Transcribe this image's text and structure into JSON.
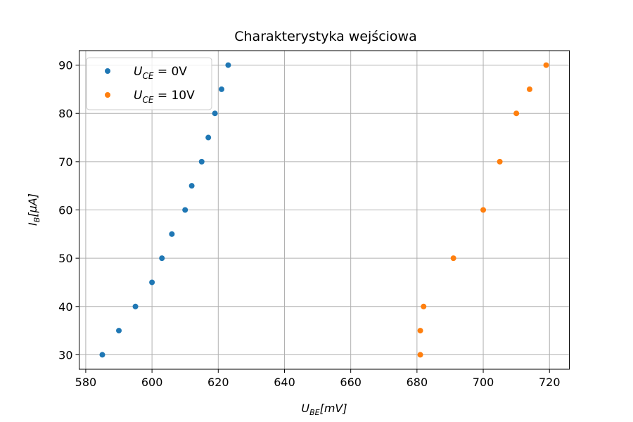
{
  "chart_data": {
    "type": "scatter",
    "title": "Charakterystyka wejściowa",
    "xlabel": {
      "main": "U",
      "sub": "BE",
      "rest": "[mV]"
    },
    "ylabel": {
      "main": "I",
      "sub": "B",
      "rest": "[μA]"
    },
    "xlim": [
      578,
      726
    ],
    "ylim": [
      27,
      93
    ],
    "xticks": [
      580,
      600,
      620,
      640,
      660,
      680,
      700,
      720
    ],
    "yticks": [
      30,
      40,
      50,
      60,
      70,
      80,
      90
    ],
    "grid": true,
    "legend_position": "top-left",
    "series": [
      {
        "legend": {
          "main": "U",
          "sub": "CE",
          "rest": " = 0V"
        },
        "color": "#1f77b4",
        "points": [
          [
            585,
            30
          ],
          [
            590,
            35
          ],
          [
            595,
            40
          ],
          [
            600,
            45
          ],
          [
            603,
            50
          ],
          [
            606,
            55
          ],
          [
            610,
            60
          ],
          [
            612,
            65
          ],
          [
            615,
            70
          ],
          [
            617,
            75
          ],
          [
            619,
            80
          ],
          [
            621,
            85
          ],
          [
            623,
            90
          ]
        ]
      },
      {
        "legend": {
          "main": "U",
          "sub": "CE",
          "rest": " = 10V"
        },
        "color": "#ff7f0e",
        "points": [
          [
            681,
            30
          ],
          [
            681,
            35
          ],
          [
            682,
            40
          ],
          [
            691,
            50
          ],
          [
            700,
            60
          ],
          [
            705,
            70
          ],
          [
            710,
            80
          ],
          [
            714,
            85
          ],
          [
            719,
            90
          ]
        ]
      }
    ]
  }
}
